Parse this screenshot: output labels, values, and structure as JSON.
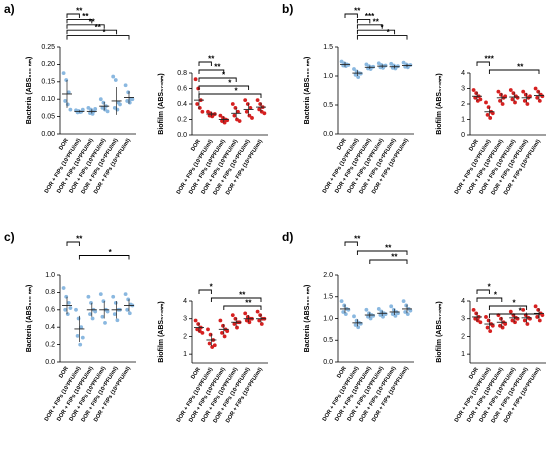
{
  "panel_labels": [
    "a)",
    "b)",
    "c)",
    "d)"
  ],
  "chart_data": [
    {
      "type": "strip",
      "ylabel": "Bacteria (ABS₆₀₀ ₙₘ)",
      "color": "#8ab8e0",
      "categories": [
        "DOR",
        "DOR + FIPs (10¹PFU/ml)",
        "DOR + FIPs (10²PFU/ml)",
        "DOR + FIPs (10³PFU/ml)",
        "DOR + FIPs (10⁴PFU/ml)",
        "DOR + FIPs (10⁵PFU/ml)"
      ],
      "ylim": [
        0,
        0.25
      ],
      "yticks": [
        {
          "value": 0,
          "label": "0.00"
        },
        0.05,
        {
          "value": 0.1,
          "label": "0.10"
        },
        0.15,
        {
          "value": 0.2,
          "label": "0.20"
        },
        0.25
      ],
      "points": [
        [
          0.175,
          0.155,
          0.12,
          0.095,
          0.085,
          0.07
        ],
        [
          0.068,
          0.066,
          0.064,
          0.062,
          0.063,
          0.07
        ],
        [
          0.075,
          0.07,
          0.065,
          0.06,
          0.058,
          0.072
        ],
        [
          0.1,
          0.09,
          0.08,
          0.075,
          0.07,
          0.065
        ],
        [
          0.165,
          0.155,
          0.09,
          0.075,
          0.07,
          0.085
        ],
        [
          0.14,
          0.12,
          0.1,
          0.095,
          0.09,
          0.1
        ]
      ],
      "means": [
        0.115,
        0.065,
        0.065,
        0.08,
        0.095,
        0.105
      ],
      "errors": [
        0.04,
        0.003,
        0.006,
        0.012,
        0.04,
        0.018
      ],
      "brackets": [
        {
          "label": "**",
          "from": 0,
          "to": 1
        },
        {
          "label": "**",
          "from": 0,
          "to": 2
        },
        {
          "label": "**",
          "from": 0,
          "to": 3
        },
        {
          "label": "**",
          "from": 0,
          "to": 4
        },
        {
          "label": "*",
          "from": 0,
          "to": 5
        }
      ]
    },
    {
      "type": "strip",
      "ylabel": "Biofilm (ABS₅₇₀ₙₘ)",
      "color": "#d62020",
      "categories": [
        "DOR",
        "DOR + FIPs (10¹PFU/ml)",
        "DOR + FIPs (10²PFU/ml)",
        "DOR + FIPs (10³PFU/ml)",
        "DOR + FIPs (10⁴PFU/ml)",
        "DOR + FIPs (10⁵PFU/ml)"
      ],
      "ylim": [
        0,
        0.8
      ],
      "yticks": [
        {
          "value": 0,
          "label": "0.0"
        },
        0.2,
        0.4,
        0.6,
        0.8
      ],
      "points": [
        [
          0.72,
          0.6,
          0.45,
          0.4,
          0.35,
          0.3
        ],
        [
          0.3,
          0.28,
          0.26,
          0.25,
          0.24,
          0.27
        ],
        [
          0.25,
          0.22,
          0.2,
          0.18,
          0.16,
          0.19
        ],
        [
          0.4,
          0.35,
          0.3,
          0.25,
          0.2,
          0.18
        ],
        [
          0.45,
          0.4,
          0.35,
          0.3,
          0.25,
          0.22
        ],
        [
          0.45,
          0.4,
          0.36,
          0.33,
          0.3,
          0.28
        ]
      ],
      "means": [
        0.45,
        0.27,
        0.2,
        0.28,
        0.33,
        0.36
      ],
      "errors": [
        0.12,
        0.03,
        0.04,
        0.07,
        0.08,
        0.06
      ],
      "brackets": [
        {
          "label": "**",
          "from": 0,
          "to": 1
        },
        {
          "label": "**",
          "from": 0,
          "to": 2
        },
        {
          "label": "*",
          "from": 0,
          "to": 3
        },
        {
          "label": "*",
          "from": 0,
          "to": 4
        },
        {
          "label": "*",
          "from": 0,
          "to": 5
        }
      ]
    },
    {
      "type": "strip",
      "ylabel": "Bacteria (ABS₆₀₀ ₙₘ)",
      "color": "#8ab8e0",
      "categories": [
        "DOR",
        "DOR + FIPs (10¹PFU/ml)",
        "DOR + FIPs (10²PFU/ml)",
        "DOR + FIPs (10³PFU/ml)",
        "DOR + FIPs (10⁴PFU/ml)",
        "DOR + FIPs (10⁵PFU/ml)"
      ],
      "ylim": [
        0,
        1.5
      ],
      "yticks": [
        {
          "value": 0,
          "label": "0.0"
        },
        0.5,
        {
          "value": 1,
          "label": "1.0"
        },
        1.5
      ],
      "points": [
        [
          1.25,
          1.22,
          1.2,
          1.18,
          1.17,
          1.19
        ],
        [
          1.12,
          1.08,
          1.05,
          1.02,
          0.98,
          1.04
        ],
        [
          1.2,
          1.17,
          1.15,
          1.13,
          1.12,
          1.16
        ],
        [
          1.22,
          1.19,
          1.17,
          1.15,
          1.14,
          1.18
        ],
        [
          1.21,
          1.18,
          1.16,
          1.14,
          1.13,
          1.17
        ],
        [
          1.23,
          1.2,
          1.18,
          1.16,
          1.15,
          1.19
        ]
      ],
      "means": [
        1.2,
        1.05,
        1.15,
        1.17,
        1.16,
        1.18
      ],
      "errors": [
        0.04,
        0.05,
        0.03,
        0.03,
        0.03,
        0.03
      ],
      "brackets": [
        {
          "label": "**",
          "from": 0,
          "to": 1
        },
        {
          "label": "***",
          "from": 1,
          "to": 2
        },
        {
          "label": "**",
          "from": 1,
          "to": 3
        },
        {
          "label": "*",
          "from": 1,
          "to": 4
        },
        {
          "label": "*",
          "from": 1,
          "to": 5
        }
      ]
    },
    {
      "type": "strip",
      "ylabel": "Biofilm (ABS₅₇₀ₙₘ)",
      "color": "#d62020",
      "categories": [
        "DOR",
        "DOR + FIPs (10¹PFU/ml)",
        "DOR + FIPs (10²PFU/ml)",
        "DOR + FIPs (10³PFU/ml)",
        "DOR + FIPs (10⁴PFU/ml)",
        "DOR + FIPs (10⁵PFU/ml)"
      ],
      "ylim": [
        0,
        4
      ],
      "yticks": [
        0,
        1,
        2,
        3,
        4
      ],
      "points": [
        [
          2.9,
          2.7,
          2.5,
          2.4,
          2.2,
          2.3
        ],
        [
          2.1,
          1.8,
          1.5,
          1.3,
          1.1,
          1.4
        ],
        [
          2.8,
          2.6,
          2.4,
          2.2,
          2.0,
          2.5
        ],
        [
          2.9,
          2.7,
          2.5,
          2.3,
          2.1,
          2.4
        ],
        [
          2.8,
          2.6,
          2.4,
          2.2,
          2.0,
          2.5
        ],
        [
          3.0,
          2.8,
          2.6,
          2.4,
          2.2,
          2.5
        ]
      ],
      "means": [
        2.5,
        1.5,
        2.4,
        2.45,
        2.4,
        2.55
      ],
      "errors": [
        0.3,
        0.3,
        0.3,
        0.3,
        0.3,
        0.3
      ],
      "brackets": [
        {
          "label": "***",
          "from": 0,
          "to": 1
        },
        {
          "label": "**",
          "from": 1,
          "to": 5
        }
      ]
    },
    {
      "type": "strip",
      "ylabel": "Bacteria (ABS₆₀₀ ₙₘ)",
      "color": "#8ab8e0",
      "categories": [
        "DOR",
        "DOR + FIPs (10¹PFU/ml)",
        "DOR + FIPs (10²PFU/ml)",
        "DOR + FIPs (10³PFU/ml)",
        "DOR + FIPs (10⁴PFU/ml)",
        "DOR + FIPs (10⁵PFU/ml)"
      ],
      "ylim": [
        0,
        1
      ],
      "yticks": [
        {
          "value": 0,
          "label": "0.0"
        },
        0.2,
        0.4,
        0.6,
        0.8,
        {
          "value": 1,
          "label": "1.0"
        }
      ],
      "points": [
        [
          0.85,
          0.75,
          0.68,
          0.6,
          0.55,
          0.62
        ],
        [
          0.6,
          0.5,
          0.4,
          0.3,
          0.2,
          0.28
        ],
        [
          0.75,
          0.68,
          0.6,
          0.55,
          0.5,
          0.58
        ],
        [
          0.78,
          0.7,
          0.6,
          0.52,
          0.45,
          0.58
        ],
        [
          0.75,
          0.68,
          0.6,
          0.55,
          0.48,
          0.6
        ],
        [
          0.78,
          0.72,
          0.66,
          0.6,
          0.56,
          0.65
        ]
      ],
      "means": [
        0.65,
        0.38,
        0.6,
        0.6,
        0.6,
        0.65
      ],
      "errors": [
        0.1,
        0.15,
        0.08,
        0.1,
        0.1,
        0.07
      ],
      "brackets": [
        {
          "label": "**",
          "from": 0,
          "to": 1
        },
        {
          "label": "*",
          "from": 1,
          "to": 5
        }
      ]
    },
    {
      "type": "strip",
      "ylabel": "Biofilm (ABS₅₇₀ₙₘ)",
      "color": "#d62020",
      "categories": [
        "DOR",
        "DOR + FIPs (10¹PFU/ml)",
        "DOR + FIPs (10²PFU/ml)",
        "DOR + FIPs (10³PFU/ml)",
        "DOR + FIPs (10⁴PFU/ml)",
        "DOR + FIPs (10⁵PFU/ml)"
      ],
      "ylim": [
        0.5,
        4
      ],
      "yticks": [
        1,
        2,
        3,
        4
      ],
      "points": [
        [
          2.9,
          2.7,
          2.5,
          2.4,
          2.3,
          2.2
        ],
        [
          2.4,
          2.1,
          1.8,
          1.6,
          1.4,
          1.5
        ],
        [
          2.9,
          2.6,
          2.4,
          2.2,
          2.0,
          2.3
        ],
        [
          3.2,
          3.0,
          2.8,
          2.7,
          2.5,
          2.8
        ],
        [
          3.3,
          3.1,
          3.0,
          2.9,
          2.8,
          3.0
        ],
        [
          3.4,
          3.2,
          3.0,
          2.9,
          2.7,
          3.0
        ]
      ],
      "means": [
        2.5,
        1.8,
        2.4,
        2.8,
        3.0,
        3.0
      ],
      "errors": [
        0.25,
        0.35,
        0.3,
        0.25,
        0.2,
        0.25
      ],
      "brackets": [
        {
          "label": "*",
          "from": 0,
          "to": 1
        },
        {
          "label": "**",
          "from": 1,
          "to": 5
        },
        {
          "label": "**",
          "from": 2,
          "to": 5
        }
      ]
    },
    {
      "type": "strip",
      "ylabel": "Bacteria (ABS₆₀₀ ₙₘ)",
      "color": "#8ab8e0",
      "categories": [
        "DOR",
        "DOR + FIPs (10¹PFU/ml)",
        "DOR + FIPs (10²PFU/ml)",
        "DOR + FIPs (10³PFU/ml)",
        "DOR + FIPs (10⁴PFU/ml)",
        "DOR + FIPs (10⁵PFU/ml)"
      ],
      "ylim": [
        0,
        2
      ],
      "yticks": [
        {
          "value": 0,
          "label": "0.0"
        },
        0.5,
        {
          "value": 1,
          "label": "1.0"
        },
        1.5,
        {
          "value": 2,
          "label": "2.0"
        }
      ],
      "points": [
        [
          1.4,
          1.3,
          1.22,
          1.15,
          1.1,
          1.2
        ],
        [
          1.05,
          0.95,
          0.9,
          0.85,
          0.8,
          0.88
        ],
        [
          1.2,
          1.12,
          1.08,
          1.04,
          1.0,
          1.06
        ],
        [
          1.22,
          1.16,
          1.12,
          1.08,
          1.04,
          1.1
        ],
        [
          1.28,
          1.2,
          1.15,
          1.1,
          1.06,
          1.12
        ],
        [
          1.4,
          1.3,
          1.22,
          1.15,
          1.1,
          1.18
        ]
      ],
      "means": [
        1.22,
        0.9,
        1.08,
        1.12,
        1.15,
        1.22
      ],
      "errors": [
        0.1,
        0.08,
        0.06,
        0.06,
        0.07,
        0.1
      ],
      "brackets": [
        {
          "label": "**",
          "from": 0,
          "to": 1
        },
        {
          "label": "**",
          "from": 1,
          "to": 5
        },
        {
          "label": "**",
          "from": 2,
          "to": 5
        }
      ]
    },
    {
      "type": "strip",
      "ylabel": "Biofilm (ABS₅₇₀ₙₘ)",
      "color": "#d62020",
      "categories": [
        "DOR",
        "DOR + FIPs (10¹PFU/ml)",
        "DOR + FIPs (10²PFU/ml)",
        "DOR + FIPs (10³PFU/ml)",
        "DOR + FIPs (10⁴PFU/ml)",
        "DOR + FIPs (10⁵PFU/ml)"
      ],
      "ylim": [
        0.5,
        4
      ],
      "yticks": [
        1,
        2,
        3,
        4
      ],
      "points": [
        [
          3.5,
          3.3,
          3.1,
          3.0,
          2.9,
          2.8
        ],
        [
          3.1,
          2.9,
          2.7,
          2.5,
          2.3,
          2.6
        ],
        [
          3.2,
          3.0,
          2.8,
          2.6,
          2.5,
          2.7
        ],
        [
          3.4,
          3.2,
          3.05,
          2.9,
          2.8,
          3.0
        ],
        [
          3.5,
          3.2,
          3.05,
          2.9,
          2.7,
          3.0
        ],
        [
          3.7,
          3.5,
          3.3,
          3.1,
          2.9,
          3.2
        ]
      ],
      "means": [
        3.1,
        2.7,
        2.8,
        3.05,
        3.05,
        3.3
      ],
      "errors": [
        0.25,
        0.3,
        0.3,
        0.25,
        0.3,
        0.3
      ],
      "brackets": [
        {
          "label": "*",
          "from": 0,
          "to": 1
        },
        {
          "label": "*",
          "from": 0,
          "to": 2
        },
        {
          "label": "*",
          "from": 1,
          "to": 4
        },
        {
          "label": "*",
          "from": 1,
          "to": 5
        }
      ]
    }
  ]
}
